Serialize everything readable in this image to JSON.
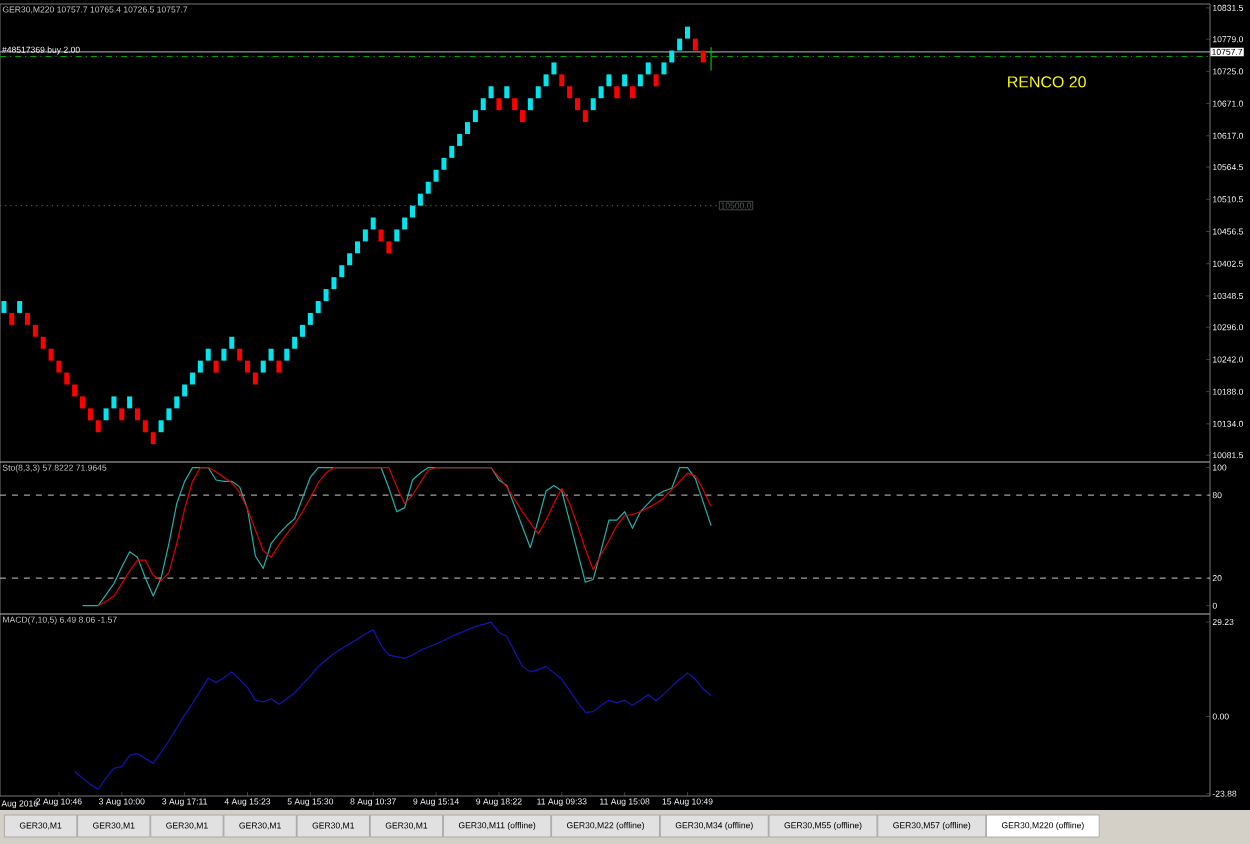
{
  "chart_data": [
    {
      "type": "candlestick",
      "title": "GER30,M220 10757.7 10765.4 10726.5 10757.7",
      "categories": [
        null,
        null,
        null,
        null,
        null,
        null,
        null,
        null,
        null,
        null,
        null,
        null,
        null,
        null,
        null,
        null,
        null,
        null,
        null,
        null,
        null,
        null,
        null,
        null,
        null,
        null,
        null,
        null,
        null,
        null,
        null,
        null,
        null,
        null,
        null,
        null,
        null,
        null,
        null,
        null,
        null,
        null,
        null,
        null,
        null,
        null,
        null,
        null,
        null,
        null,
        null,
        null,
        null,
        null,
        null,
        null,
        null,
        null,
        null,
        null,
        null,
        null,
        null,
        null,
        null,
        null,
        null,
        null,
        null,
        null,
        null,
        null,
        null,
        null,
        null,
        null,
        null,
        null,
        null,
        null,
        null,
        null,
        null,
        null,
        null,
        null,
        null,
        null,
        null,
        null,
        null,
        null,
        null,
        null,
        null,
        null,
        null,
        null,
        null,
        null,
        null,
        null,
        null,
        null,
        null,
        null,
        null,
        null,
        null,
        null,
        null,
        null,
        null,
        null,
        null,
        null,
        null,
        null,
        null,
        null,
        null,
        null,
        null,
        null,
        null,
        null,
        null,
        null,
        null,
        null,
        null,
        null,
        null,
        null,
        null,
        null,
        null,
        null,
        null,
        null,
        null,
        null,
        null,
        null,
        null,
        null,
        null,
        null,
        null,
        null,
        null,
        null,
        null,
        null
      ],
      "ohlc": [
        [
          10320,
          10340,
          10320,
          10340
        ],
        [
          10320,
          10320,
          10300,
          10300
        ],
        [
          10320,
          10340,
          10320,
          10340
        ],
        [
          10320,
          10320,
          10300,
          10300
        ],
        [
          10300,
          10300,
          10280,
          10280
        ],
        [
          10280,
          10280,
          10260,
          10260
        ],
        [
          10260,
          10260,
          10240,
          10240
        ],
        [
          10240,
          10240,
          10220,
          10220
        ],
        [
          10220,
          10220,
          10200,
          10200
        ],
        [
          10200,
          10200,
          10180,
          10180
        ],
        [
          10180,
          10180,
          10160,
          10160
        ],
        [
          10160,
          10160,
          10140,
          10140
        ],
        [
          10140,
          10140,
          10120,
          10120
        ],
        [
          10140,
          10160,
          10140,
          10160
        ],
        [
          10160,
          10180,
          10160,
          10180
        ],
        [
          10160,
          10160,
          10140,
          10140
        ],
        [
          10160,
          10180,
          10160,
          10180
        ],
        [
          10160,
          10160,
          10140,
          10140
        ],
        [
          10140,
          10140,
          10120,
          10120
        ],
        [
          10120,
          10120,
          10100,
          10100
        ],
        [
          10120,
          10140,
          10120,
          10140
        ],
        [
          10140,
          10160,
          10140,
          10160
        ],
        [
          10160,
          10180,
          10160,
          10180
        ],
        [
          10180,
          10200,
          10180,
          10200
        ],
        [
          10200,
          10220,
          10200,
          10220
        ],
        [
          10220,
          10240,
          10220,
          10240
        ],
        [
          10240,
          10260,
          10240,
          10260
        ],
        [
          10240,
          10240,
          10220,
          10220
        ],
        [
          10240,
          10260,
          10240,
          10260
        ],
        [
          10260,
          10280,
          10260,
          10280
        ],
        [
          10260,
          10260,
          10240,
          10240
        ],
        [
          10240,
          10240,
          10220,
          10220
        ],
        [
          10220,
          10220,
          10200,
          10200
        ],
        [
          10220,
          10240,
          10220,
          10240
        ],
        [
          10240,
          10260,
          10240,
          10260
        ],
        [
          10240,
          10240,
          10220,
          10220
        ],
        [
          10240,
          10260,
          10240,
          10260
        ],
        [
          10260,
          10280,
          10260,
          10280
        ],
        [
          10280,
          10300,
          10280,
          10300
        ],
        [
          10300,
          10320,
          10300,
          10320
        ],
        [
          10320,
          10340,
          10320,
          10340
        ],
        [
          10340,
          10360,
          10340,
          10360
        ],
        [
          10360,
          10380,
          10360,
          10380
        ],
        [
          10380,
          10400,
          10380,
          10400
        ],
        [
          10400,
          10420,
          10400,
          10420
        ],
        [
          10420,
          10440,
          10420,
          10440
        ],
        [
          10440,
          10460,
          10440,
          10460
        ],
        [
          10460,
          10480,
          10460,
          10480
        ],
        [
          10460,
          10460,
          10440,
          10440
        ],
        [
          10440,
          10440,
          10420,
          10420
        ],
        [
          10440,
          10460,
          10440,
          10460
        ],
        [
          10460,
          10480,
          10460,
          10480
        ],
        [
          10480,
          10500,
          10480,
          10500
        ],
        [
          10500,
          10520,
          10500,
          10520
        ],
        [
          10520,
          10540,
          10520,
          10540
        ],
        [
          10540,
          10560,
          10540,
          10560
        ],
        [
          10560,
          10580,
          10560,
          10580
        ],
        [
          10580,
          10600,
          10580,
          10600
        ],
        [
          10600,
          10620,
          10600,
          10620
        ],
        [
          10620,
          10640,
          10620,
          10640
        ],
        [
          10640,
          10660,
          10640,
          10660
        ],
        [
          10660,
          10680,
          10660,
          10680
        ],
        [
          10680,
          10700,
          10680,
          10700
        ],
        [
          10680,
          10680,
          10660,
          10660
        ],
        [
          10680,
          10700,
          10680,
          10700
        ],
        [
          10680,
          10680,
          10660,
          10660
        ],
        [
          10660,
          10660,
          10640,
          10640
        ],
        [
          10660,
          10680,
          10660,
          10680
        ],
        [
          10680,
          10700,
          10680,
          10700
        ],
        [
          10700,
          10720,
          10700,
          10720
        ],
        [
          10720,
          10740,
          10720,
          10740
        ],
        [
          10720,
          10720,
          10700,
          10700
        ],
        [
          10700,
          10700,
          10680,
          10680
        ],
        [
          10680,
          10680,
          10660,
          10660
        ],
        [
          10660,
          10660,
          10640,
          10640
        ],
        [
          10660,
          10680,
          10660,
          10680
        ],
        [
          10680,
          10700,
          10680,
          10700
        ],
        [
          10700,
          10720,
          10700,
          10720
        ],
        [
          10700,
          10700,
          10680,
          10680
        ],
        [
          10700,
          10720,
          10700,
          10720
        ],
        [
          10700,
          10700,
          10680,
          10680
        ],
        [
          10700,
          10720,
          10700,
          10720
        ],
        [
          10720,
          10740,
          10720,
          10740
        ],
        [
          10720,
          10720,
          10700,
          10700
        ],
        [
          10720,
          10740,
          10720,
          10740
        ],
        [
          10740,
          10760,
          10740,
          10760
        ],
        [
          10760,
          10780,
          10760,
          10780
        ],
        [
          10780,
          10800,
          10780,
          10800
        ],
        [
          10780,
          10780,
          10760,
          10760
        ],
        [
          10760,
          10760,
          10740,
          10740
        ],
        [
          10757.7,
          10765.4,
          10726.5,
          10757.7
        ],
        null,
        null,
        null,
        null,
        null,
        null,
        null,
        null,
        null,
        null,
        null,
        null,
        null,
        null,
        null,
        null,
        null,
        null,
        null,
        null,
        null,
        null,
        null,
        null,
        null,
        null,
        null,
        null,
        null,
        null,
        null,
        null,
        null,
        null,
        null,
        null,
        null,
        null,
        null,
        null,
        null,
        null,
        null,
        null,
        null,
        null,
        null,
        null,
        null,
        null,
        null,
        null,
        null,
        null,
        null,
        null,
        null,
        null,
        null,
        null,
        null,
        null,
        null
      ],
      "colors": [
        "#00e5ee",
        "#ff0000",
        "#00e5ee",
        "#ff0000",
        "#ff0000",
        "#ff0000",
        "#ff0000",
        "#ff0000",
        "#ff0000",
        "#ff0000",
        "#ff0000",
        "#ff0000",
        "#ff0000",
        "#00e5ee",
        "#00e5ee",
        "#ff0000",
        "#00e5ee",
        "#ff0000",
        "#ff0000",
        "#ff0000",
        "#00e5ee",
        "#00e5ee",
        "#00e5ee",
        "#00e5ee",
        "#00e5ee",
        "#00e5ee",
        "#00e5ee",
        "#ff0000",
        "#00e5ee",
        "#00e5ee",
        "#ff0000",
        "#ff0000",
        "#ff0000",
        "#00e5ee",
        "#00e5ee",
        "#ff0000",
        "#00e5ee",
        "#00e5ee",
        "#00e5ee",
        "#00e5ee",
        "#00e5ee",
        "#00e5ee",
        "#00e5ee",
        "#00e5ee",
        "#00e5ee",
        "#00e5ee",
        "#00e5ee",
        "#00e5ee",
        "#ff0000",
        "#ff0000",
        "#00e5ee",
        "#00e5ee",
        "#00e5ee",
        "#00e5ee",
        "#00e5ee",
        "#00e5ee",
        "#00e5ee",
        "#00e5ee",
        "#00e5ee",
        "#00e5ee",
        "#00e5ee",
        "#00e5ee",
        "#00e5ee",
        "#ff0000",
        "#00e5ee",
        "#ff0000",
        "#ff0000",
        "#00e5ee",
        "#00e5ee",
        "#00e5ee",
        "#00e5ee",
        "#ff0000",
        "#ff0000",
        "#ff0000",
        "#ff0000",
        "#00e5ee",
        "#00e5ee",
        "#00e5ee",
        "#ff0000",
        "#00e5ee",
        "#ff0000",
        "#00e5ee",
        "#00e5ee",
        "#ff0000",
        "#00e5ee",
        "#00e5ee",
        "#00e5ee",
        "#00e5ee",
        "#ff0000",
        "#ff0000",
        "#00c000",
        null,
        null,
        null,
        null,
        null,
        null,
        null,
        null,
        null,
        null,
        null,
        null,
        null,
        null,
        null,
        null,
        null,
        null,
        null,
        null,
        null,
        null,
        null,
        null,
        null,
        null,
        null,
        null,
        null,
        null,
        null,
        null,
        null,
        null,
        null,
        null,
        null,
        null,
        null,
        null,
        null,
        null,
        null,
        null,
        null,
        null,
        null,
        null,
        null,
        null,
        null,
        null,
        null,
        null,
        null,
        null,
        null,
        null,
        null,
        null,
        null,
        null,
        null
      ],
      "ylim": [
        10070,
        10838
      ],
      "yticks": [
        {
          "value": 10081.5,
          "label": "10081.5"
        },
        {
          "value": 10134,
          "label": "10134.0"
        },
        {
          "value": 10188,
          "label": "10188.0"
        },
        {
          "value": 10242,
          "label": "10242.0"
        },
        {
          "value": 10296,
          "label": "10296.0"
        },
        {
          "value": 10348.5,
          "label": "10348.5"
        },
        {
          "value": 10402.5,
          "label": "10402.5"
        },
        {
          "value": 10456.5,
          "label": "10456.5"
        },
        {
          "value": 10510.5,
          "label": "10510.5"
        },
        {
          "value": 10564.5,
          "label": "10564.5"
        },
        {
          "value": 10617,
          "label": "10617.0"
        },
        {
          "value": 10671,
          "label": "10671.0"
        },
        {
          "value": 10725,
          "label": "10725.0"
        },
        {
          "value": 10779,
          "label": "10779.0"
        },
        {
          "value": 10831.5,
          "label": "10831.5"
        }
      ],
      "tick_labels": "y",
      "ref_lines": [
        {
          "axis": "y",
          "value": 10757.7,
          "label": "10757.7",
          "color": "#8c96a0",
          "line_style": "solid"
        },
        {
          "axis": "y",
          "value": 10750,
          "label": "#48517369 buy 2.00",
          "color": "#00a000",
          "line_style": "dashdot"
        },
        {
          "axis": "y",
          "value": 10500,
          "label": "10500.0",
          "color": "#505a5a",
          "line_style": "dotted"
        }
      ],
      "annotations": [
        "RENCO 20"
      ]
    },
    {
      "type": "line",
      "title": "Sto(8,3,3) 57.8222 71.9645",
      "categories": [
        null,
        null,
        null,
        null,
        null,
        null,
        null,
        null,
        null,
        null,
        null,
        null,
        null,
        null,
        null,
        null,
        null,
        null,
        null,
        null,
        null,
        null,
        null,
        null,
        null,
        null,
        null,
        null,
        null,
        null,
        null,
        null,
        null,
        null,
        null,
        null,
        null,
        null,
        null,
        null,
        null,
        null,
        null,
        null,
        null,
        null,
        null,
        null,
        null,
        null,
        null,
        null,
        null,
        null,
        null,
        null,
        null,
        null,
        null,
        null,
        null,
        null,
        null,
        null,
        null,
        null,
        null,
        null,
        null,
        null,
        null,
        null,
        null,
        null,
        null,
        null,
        null,
        null,
        null,
        null,
        null,
        null,
        null,
        null,
        null,
        null,
        null,
        null,
        null,
        null,
        null,
        null,
        null,
        null,
        null,
        null,
        null,
        null,
        null,
        null,
        null,
        null,
        null,
        null,
        null,
        null,
        null,
        null,
        null,
        null,
        null,
        null,
        null,
        null,
        null,
        null,
        null,
        null,
        null,
        null,
        null,
        null,
        null,
        null,
        null,
        null,
        null,
        null,
        null,
        null,
        null,
        null,
        null,
        null,
        null,
        null,
        null,
        null,
        null,
        null,
        null,
        null,
        null,
        null,
        null,
        null,
        null,
        null,
        null,
        null,
        null,
        null,
        null,
        null
      ],
      "series": [
        {
          "color": "#20b2aa",
          "values": [
            null,
            null,
            null,
            null,
            null,
            null,
            null,
            null,
            null,
            null,
            0,
            0,
            0,
            8,
            16,
            28,
            39,
            35,
            20,
            7,
            20,
            45,
            74,
            90,
            100,
            100,
            100,
            91,
            90,
            90,
            86,
            70,
            36,
            27,
            45,
            52,
            58,
            63,
            78,
            93,
            100,
            100,
            100,
            100,
            100,
            100,
            100,
            100,
            100,
            85,
            68,
            71,
            91,
            96,
            100,
            100,
            100,
            100,
            100,
            100,
            100,
            100,
            100,
            91,
            87,
            72,
            57,
            42,
            62,
            83,
            87,
            83,
            61,
            39,
            17,
            19,
            40,
            62,
            62,
            68,
            56,
            68,
            74,
            80,
            83,
            85,
            100,
            100,
            92,
            75,
            58,
            null,
            null,
            null,
            null,
            null,
            null,
            null,
            null,
            null,
            null,
            null,
            null,
            null,
            null,
            null,
            null,
            null,
            null,
            null,
            null,
            null,
            null,
            null,
            null,
            null,
            null,
            null,
            null,
            null,
            null,
            null,
            null,
            null,
            null,
            null,
            null,
            null,
            null,
            null,
            null,
            null,
            null,
            null,
            null,
            null,
            null,
            null,
            null,
            null,
            null,
            null,
            null,
            null,
            null,
            null,
            null,
            null,
            null,
            null,
            null,
            null,
            null,
            null
          ]
        },
        {
          "color": "#e00000",
          "values": [
            null,
            null,
            null,
            null,
            null,
            null,
            null,
            null,
            null,
            null,
            null,
            null,
            0,
            3,
            7,
            16,
            25,
            33,
            33,
            22,
            18,
            24,
            45,
            70,
            90,
            100,
            100,
            97,
            93,
            89,
            82,
            70,
            55,
            40,
            35,
            44,
            52,
            59,
            68,
            78,
            89,
            96,
            100,
            100,
            100,
            100,
            100,
            100,
            100,
            100,
            86,
            74,
            80,
            89,
            98,
            100,
            100,
            100,
            100,
            100,
            100,
            100,
            100,
            93,
            86,
            77,
            68,
            60,
            52,
            62,
            74,
            85,
            74,
            58,
            41,
            26,
            37,
            47,
            58,
            65,
            66,
            68,
            71,
            74,
            78,
            84,
            90,
            96,
            94,
            84,
            72,
            null,
            null,
            null,
            null,
            null,
            null,
            null,
            null,
            null,
            null,
            null,
            null,
            null,
            null,
            null,
            null,
            null,
            null,
            null,
            null,
            null,
            null,
            null,
            null,
            null,
            null,
            null,
            null,
            null,
            null,
            null,
            null,
            null,
            null,
            null,
            null,
            null,
            null,
            null,
            null,
            null,
            null,
            null,
            null,
            null,
            null,
            null,
            null,
            null,
            null,
            null,
            null,
            null,
            null,
            null,
            null,
            null,
            null,
            null,
            null,
            null,
            null,
            null
          ]
        }
      ],
      "ylim": [
        -6,
        104
      ],
      "yticks": [
        0,
        20,
        80,
        100
      ],
      "tick_labels": "y",
      "line_style": "solid",
      "ref_lines": [
        {
          "axis": "y",
          "value": 80,
          "color": "#a0a0a0",
          "line_style": "dashed"
        },
        {
          "axis": "y",
          "value": 20,
          "color": "#a0a0a0",
          "line_style": "dashed"
        }
      ]
    },
    {
      "type": "line",
      "title": "MACD(7,10,5) 6.49 8.06 -1.57",
      "categories": [
        null,
        null,
        null,
        null,
        null,
        null,
        null,
        "2 Aug 10:46",
        null,
        null,
        null,
        null,
        null,
        null,
        null,
        "3 Aug 10:00",
        null,
        null,
        null,
        null,
        null,
        null,
        null,
        "3 Aug 17:11",
        null,
        null,
        null,
        null,
        null,
        null,
        null,
        "4 Aug 15:23",
        null,
        null,
        null,
        null,
        null,
        null,
        null,
        "5 Aug 15:30",
        null,
        null,
        null,
        null,
        null,
        null,
        null,
        "8 Aug 10:37",
        null,
        null,
        null,
        null,
        null,
        null,
        null,
        "9 Aug 15:14",
        null,
        null,
        null,
        null,
        null,
        null,
        null,
        "9 Aug 18:22",
        null,
        null,
        null,
        null,
        null,
        null,
        null,
        "11 Aug 09:33",
        null,
        null,
        null,
        null,
        null,
        null,
        null,
        "11 Aug 15:08",
        null,
        null,
        null,
        null,
        null,
        null,
        null,
        "15 Aug 10:49",
        null,
        null,
        null,
        null,
        null,
        null,
        null,
        null,
        null,
        null,
        null,
        null,
        null,
        null,
        null,
        null,
        null,
        null,
        null,
        null,
        null,
        null,
        null,
        null,
        null,
        null,
        null,
        null,
        null,
        null,
        null,
        null,
        null,
        null,
        null,
        null,
        null,
        null,
        null,
        null,
        null,
        null,
        null,
        null,
        null,
        null,
        null,
        null,
        null,
        null,
        null,
        null,
        null,
        null,
        null,
        null,
        null,
        null,
        null,
        null,
        null,
        null,
        null,
        null,
        null,
        null
      ],
      "series": [
        {
          "color": "#1414b4",
          "values": [
            null,
            null,
            null,
            null,
            null,
            null,
            null,
            null,
            null,
            -17,
            -19,
            -21,
            -22.5,
            -19,
            -16,
            -15.5,
            -12,
            -11.5,
            -13,
            -14.5,
            -11,
            -7.5,
            -3.5,
            0.5,
            4,
            8,
            11.8,
            10.5,
            12,
            13.8,
            11.5,
            9,
            5,
            4.5,
            5.5,
            3.8,
            5.5,
            7.3,
            10,
            12.5,
            15.5,
            17.5,
            19.5,
            21,
            22.5,
            24,
            25.5,
            26.8,
            22,
            19,
            18.5,
            18,
            19,
            20.5,
            21.5,
            22.5,
            23.5,
            24.8,
            25.8,
            26.8,
            27.8,
            28.5,
            29.2,
            26,
            24.8,
            20,
            15.5,
            13.8,
            14.5,
            15.5,
            13.5,
            11.5,
            8,
            4.5,
            1.3,
            1.5,
            3.5,
            5,
            4.3,
            5,
            3.5,
            5,
            6.8,
            4.8,
            7,
            9.3,
            11.5,
            13.5,
            11.5,
            8.5,
            6.5,
            null,
            null,
            null,
            null,
            null,
            null,
            null,
            null,
            null,
            null,
            null,
            null,
            null,
            null,
            null,
            null,
            null,
            null,
            null,
            null,
            null,
            null,
            null,
            null,
            null,
            null,
            null,
            null,
            null,
            null,
            null,
            null,
            null,
            null,
            null,
            null,
            null,
            null,
            null,
            null,
            null,
            null,
            null,
            null,
            null,
            null,
            null,
            null,
            null,
            null,
            null,
            null,
            null,
            null,
            null,
            null,
            null,
            null,
            null,
            null,
            null,
            null,
            null
          ]
        }
      ],
      "ylim": [
        -24.6,
        31.7
      ],
      "yticks": [
        {
          "value": -23.88,
          "label": "-23.88"
        },
        {
          "value": 0,
          "label": "0.00"
        },
        {
          "value": 29.23,
          "label": "29.23"
        }
      ],
      "line_style": "solid",
      "annotations": [
        "Aug 2016"
      ]
    },
    {
      "type": "other",
      "annotations": [
        "GER30,M1",
        "GER30,M1",
        "GER30,M1",
        "GER30,M1",
        "GER30,M1",
        "GER30,M1",
        "GER30,M11 (offline)",
        "GER30,M22 (offline)",
        "GER30,M34 (offline)",
        "GER30,M55 (offline)",
        "GER30,M57 (offline)",
        "GER30,M220 (offline)"
      ]
    }
  ]
}
